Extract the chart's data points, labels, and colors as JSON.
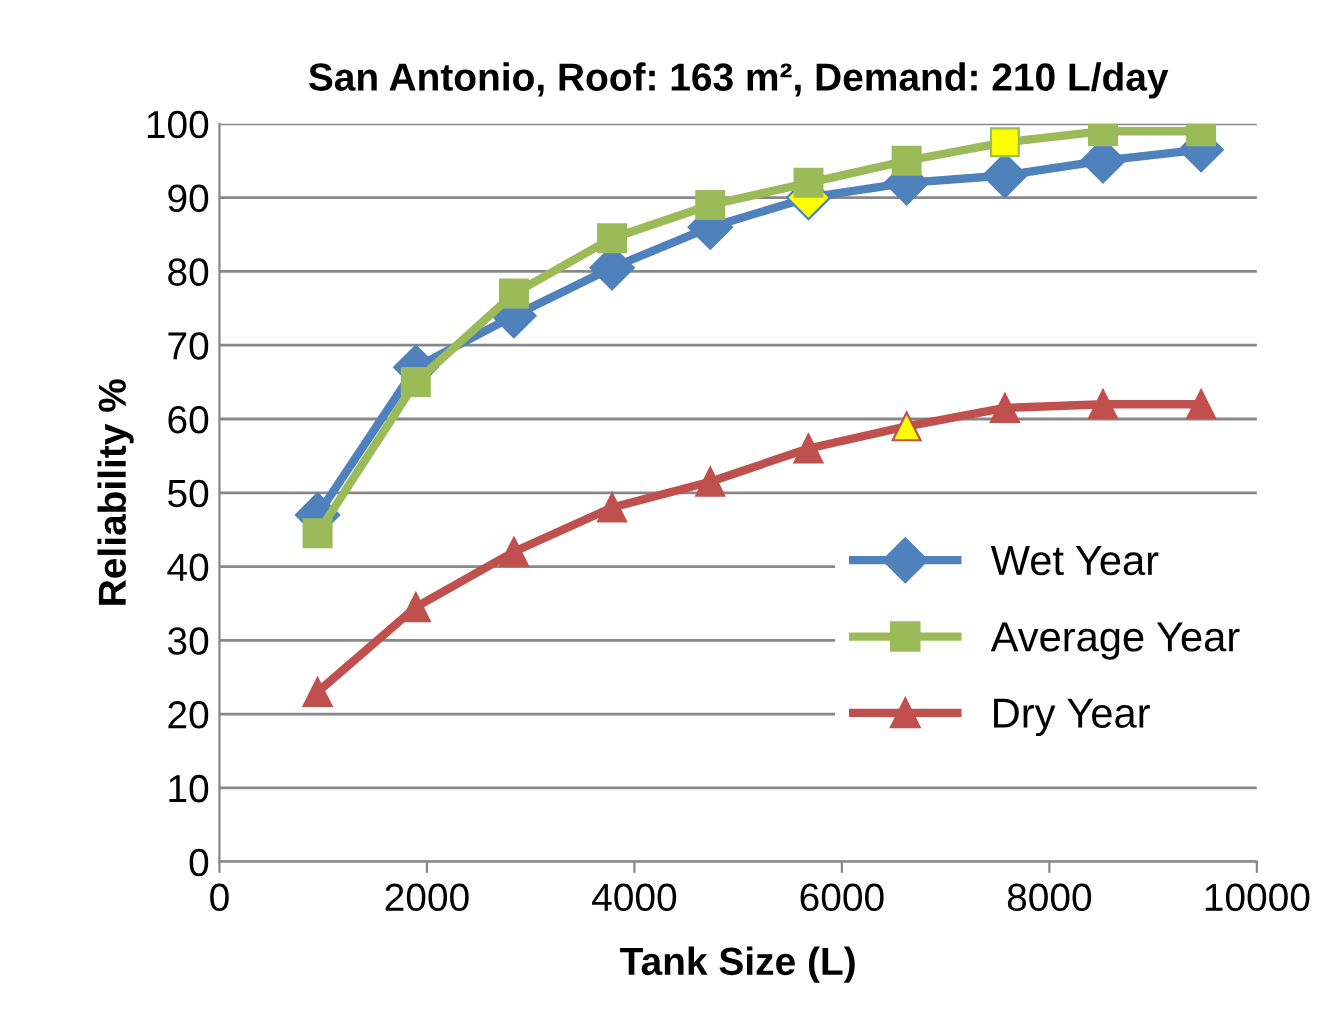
{
  "chart_data": {
    "type": "line",
    "title": "San Antonio, Roof: 163 m², Demand: 210 L/day",
    "xlabel": "Tank Size (L)",
    "ylabel": "Reliability %",
    "x": [
      946,
      1893,
      2839,
      3785,
      4731,
      5678,
      6624,
      7571,
      8517,
      9463
    ],
    "series": [
      {
        "name": "Wet Year",
        "color": "#4f81bd",
        "marker": "diamond",
        "values": [
          47,
          67,
          74,
          80.5,
          86,
          90,
          92,
          93,
          95,
          96.5
        ],
        "colors": [
          "#4f81bd",
          "#4f81bd",
          "#4f81bd",
          "#4f81bd",
          "#4f81bd",
          "#ffff00",
          "#4f81bd",
          "#4f81bd",
          "#4f81bd",
          "#4f81bd"
        ]
      },
      {
        "name": "Average Year",
        "color": "#9bbb59",
        "marker": "square",
        "values": [
          44.5,
          65,
          77,
          84.5,
          89,
          92,
          95,
          97.5,
          99,
          99
        ],
        "colors": [
          "#9bbb59",
          "#9bbb59",
          "#9bbb59",
          "#9bbb59",
          "#9bbb59",
          "#9bbb59",
          "#9bbb59",
          "#ffff00",
          "#9bbb59",
          "#9bbb59"
        ]
      },
      {
        "name": "Dry Year",
        "color": "#c0504d",
        "marker": "triangle",
        "values": [
          23,
          34.5,
          42,
          48,
          51.5,
          56,
          59,
          61.5,
          62,
          62
        ],
        "colors": [
          "#c0504d",
          "#c0504d",
          "#c0504d",
          "#c0504d",
          "#c0504d",
          "#c0504d",
          "#ffff00",
          "#c0504d",
          "#c0504d",
          "#c0504d"
        ]
      }
    ],
    "xlim": [
      0,
      10000
    ],
    "xticks": [
      0,
      2000,
      4000,
      6000,
      8000,
      10000
    ],
    "ylim": [
      0,
      100
    ],
    "yticks": [
      0,
      10,
      20,
      30,
      40,
      50,
      60,
      70,
      80,
      90,
      100
    ],
    "grid": "y",
    "legend": "right"
  }
}
